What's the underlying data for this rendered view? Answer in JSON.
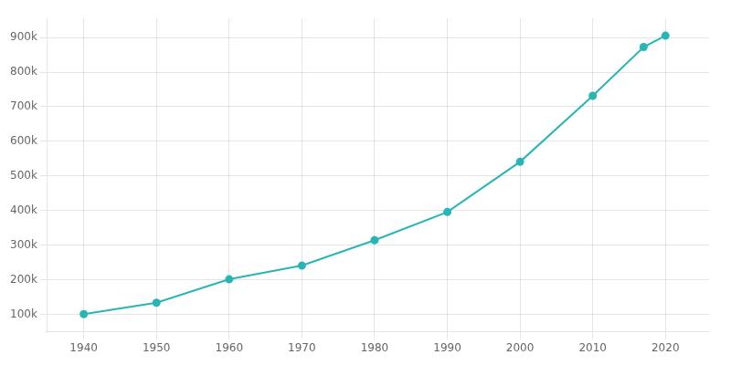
{
  "chart_data": {
    "type": "line",
    "x": [
      1940,
      1950,
      1960,
      1970,
      1980,
      1990,
      2000,
      2010,
      2017,
      2020
    ],
    "values": [
      100899,
      134042,
      201564,
      241178,
      314447,
      395934,
      540828,
      731424,
      872498,
      905154
    ],
    "color": "#2ab5b5",
    "marker": "circle",
    "xlim": [
      1935,
      2026
    ],
    "xticks": [
      1940,
      1950,
      1960,
      1970,
      1980,
      1990,
      2000,
      2010,
      2020
    ],
    "ylim": [
      50000,
      955000
    ],
    "yticks": [
      {
        "value": 100000,
        "label": "100k"
      },
      {
        "value": 200000,
        "label": "200k"
      },
      {
        "value": 300000,
        "label": "300k"
      },
      {
        "value": 400000,
        "label": "400k"
      },
      {
        "value": 500000,
        "label": "500k"
      },
      {
        "value": 600000,
        "label": "600k"
      },
      {
        "value": 700000,
        "label": "700k"
      },
      {
        "value": 800000,
        "label": "800k"
      },
      {
        "value": 900000,
        "label": "900k"
      }
    ],
    "grid": true
  }
}
